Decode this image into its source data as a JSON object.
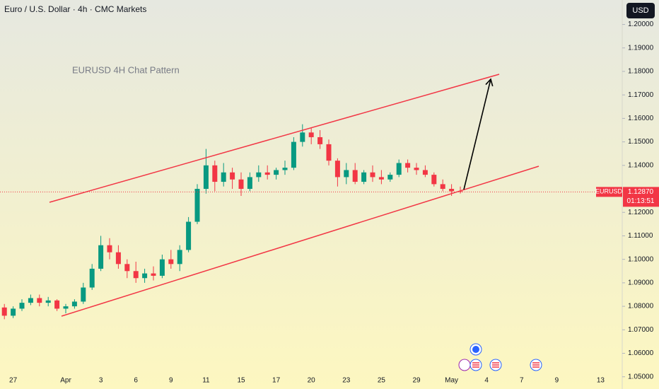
{
  "chart_data": {
    "type": "candlestick",
    "title": "Euro / U.S. Dollar · 4h · CMC Markets",
    "currency": "USD",
    "annotation": "EURUSD 4H Chat Pattern",
    "symbol": "EURUSD",
    "last_price": {
      "value": 1.1287,
      "label": "1.12870"
    },
    "countdown": "01:13:51",
    "colors": {
      "up": "#089981",
      "down": "#f23645",
      "channel": "#f23645"
    },
    "ylim": [
      1.0448,
      1.2104
    ],
    "yticks": [
      {
        "value": 1.2,
        "label": "1.20000"
      },
      {
        "value": 1.19,
        "label": "1.19000"
      },
      {
        "value": 1.18,
        "label": "1.18000"
      },
      {
        "value": 1.17,
        "label": "1.17000"
      },
      {
        "value": 1.16,
        "label": "1.16000"
      },
      {
        "value": 1.15,
        "label": "1.15000"
      },
      {
        "value": 1.14,
        "label": "1.14000"
      },
      {
        "value": 1.12,
        "label": "1.12000"
      },
      {
        "value": 1.11,
        "label": "1.11000"
      },
      {
        "value": 1.1,
        "label": "1.10000"
      },
      {
        "value": 1.09,
        "label": "1.09000"
      },
      {
        "value": 1.08,
        "label": "1.08000"
      },
      {
        "value": 1.07,
        "label": "1.07000"
      },
      {
        "value": 1.06,
        "label": "1.06000"
      },
      {
        "value": 1.05,
        "label": "1.05000"
      }
    ],
    "categories": [
      null,
      "27",
      null,
      null,
      null,
      null,
      null,
      "Apr",
      null,
      null,
      null,
      "3",
      null,
      null,
      null,
      "6",
      null,
      null,
      null,
      "9",
      null,
      null,
      null,
      "11",
      null,
      null,
      null,
      "15",
      null,
      null,
      null,
      "17",
      null,
      null,
      null,
      "20",
      null,
      null,
      null,
      "23",
      null,
      null,
      null,
      "25",
      null,
      null,
      null,
      "29",
      null,
      null,
      null,
      "May",
      null,
      null,
      null,
      "4",
      null,
      null,
      null,
      "7",
      null,
      null,
      null,
      "9",
      null,
      null,
      null,
      null,
      "13",
      null,
      null
    ],
    "open": [
      1.0795,
      1.076,
      1.079,
      1.0815,
      1.0835,
      1.0815,
      1.0825,
      1.079,
      1.08,
      1.082,
      1.088,
      1.096,
      1.106,
      1.103,
      1.098,
      1.095,
      1.092,
      1.094,
      1.093,
      1.1,
      1.098,
      1.104,
      1.116,
      1.13,
      1.14,
      1.133,
      1.137,
      1.134,
      1.13,
      1.135,
      1.137,
      1.136,
      1.138,
      1.139,
      1.15,
      1.154,
      1.152,
      1.149,
      1.142,
      1.135,
      1.138,
      1.133,
      1.137,
      1.135,
      1.134,
      1.136,
      1.141,
      1.139,
      1.138,
      1.136,
      1.132,
      1.13,
      1.129,
      null,
      null,
      null,
      null,
      null,
      null,
      null,
      null,
      null,
      null,
      null,
      null,
      null,
      null,
      null,
      null,
      null,
      null
    ],
    "high": [
      1.081,
      1.08,
      1.083,
      1.085,
      1.085,
      1.084,
      1.083,
      1.081,
      1.083,
      1.09,
      1.098,
      1.11,
      1.109,
      1.106,
      1.1,
      1.099,
      1.096,
      1.097,
      1.102,
      1.104,
      1.106,
      1.118,
      1.132,
      1.147,
      1.142,
      1.141,
      1.139,
      1.137,
      1.137,
      1.14,
      1.14,
      1.139,
      1.142,
      1.152,
      1.1575,
      1.156,
      1.155,
      1.151,
      1.143,
      1.141,
      1.141,
      1.138,
      1.14,
      1.138,
      1.137,
      1.1425,
      1.1425,
      1.141,
      1.14,
      1.137,
      1.134,
      1.132,
      1.131,
      null,
      null,
      null,
      null,
      null,
      null,
      null,
      null,
      null,
      null,
      null,
      null,
      null,
      null,
      null,
      null,
      null,
      null
    ],
    "low": [
      1.0745,
      1.075,
      1.078,
      1.0805,
      1.08,
      1.08,
      1.078,
      1.077,
      1.079,
      1.081,
      1.087,
      1.095,
      1.1,
      1.096,
      1.092,
      1.09,
      1.09,
      1.091,
      1.092,
      1.096,
      1.095,
      1.103,
      1.115,
      1.128,
      1.129,
      1.131,
      1.13,
      1.127,
      1.129,
      1.133,
      1.134,
      1.134,
      1.136,
      1.138,
      1.148,
      1.149,
      1.147,
      1.14,
      1.131,
      1.132,
      1.132,
      1.132,
      1.133,
      1.132,
      1.133,
      1.135,
      1.137,
      1.136,
      1.135,
      1.131,
      1.129,
      1.127,
      1.128,
      null,
      null,
      null,
      null,
      null,
      null,
      null,
      null,
      null,
      null,
      null,
      null,
      null,
      null,
      null,
      null,
      null,
      null
    ],
    "close": [
      1.076,
      1.079,
      1.0815,
      1.0835,
      1.0815,
      1.0825,
      1.079,
      1.08,
      1.082,
      1.088,
      1.096,
      1.106,
      1.103,
      1.098,
      1.095,
      1.092,
      1.094,
      1.093,
      1.1,
      1.098,
      1.104,
      1.116,
      1.13,
      1.14,
      1.133,
      1.137,
      1.134,
      1.13,
      1.135,
      1.137,
      1.136,
      1.138,
      1.139,
      1.15,
      1.154,
      1.152,
      1.149,
      1.142,
      1.135,
      1.138,
      1.133,
      1.137,
      1.135,
      1.134,
      1.136,
      1.141,
      1.139,
      1.138,
      1.136,
      1.132,
      1.13,
      1.129,
      1.1287,
      null,
      null,
      null,
      null,
      null,
      null,
      null,
      null,
      null,
      null,
      null,
      null,
      null,
      null,
      null,
      null,
      null,
      null
    ]
  }
}
